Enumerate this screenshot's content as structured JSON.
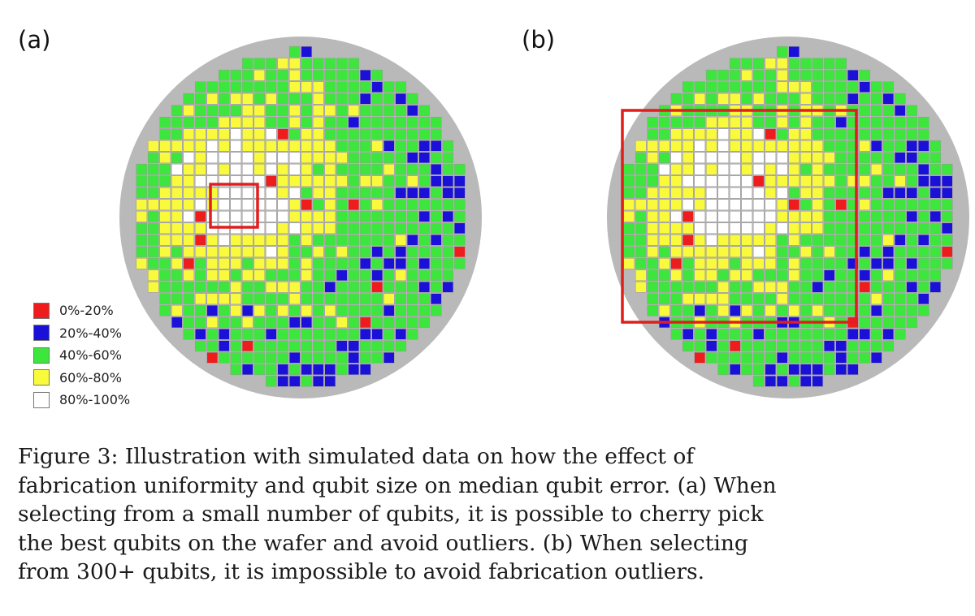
{
  "panels": [
    {
      "label": "(a)",
      "note": "small selection region"
    },
    {
      "label": "(b)",
      "note": "large selection region"
    }
  ],
  "legend": {
    "items": [
      {
        "label": "0%-20%",
        "color": "#ee1c1c"
      },
      {
        "label": "20%-40%",
        "color": "#1a10d8"
      },
      {
        "label": "40%-60%",
        "color": "#3ce63c"
      },
      {
        "label": "60%-80%",
        "color": "#fafa3c"
      },
      {
        "label": "80%-100%",
        "color": "#ffffff"
      }
    ]
  },
  "wafer": {
    "background_color": "#b9b9b9",
    "selection_color": "#e01e1e",
    "grid_rows": 30,
    "grid_cols": 30
  },
  "caption": {
    "lines": [
      "Figure 3: Illustration with simulated data on how the effect of",
      "fabrication uniformity and qubit size on median qubit error. (a) When",
      "selecting from a small number of qubits, it is possible to cherry pick",
      "the best qubits on the wafer and avoid outliers. (b) When selecting",
      "from 300+ qubits, it is impossible to avoid fabrication outliers."
    ]
  }
}
